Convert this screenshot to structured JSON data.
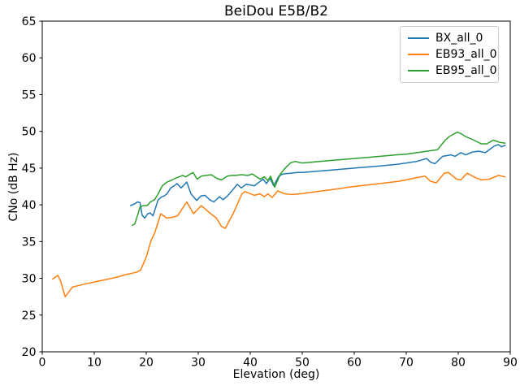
{
  "chart_data": {
    "type": "line",
    "title": "BeiDou E5B/B2",
    "xlabel": "Elevation (deg)",
    "ylabel": "CNo (dB Hz)",
    "xlim": [
      0,
      90
    ],
    "ylim": [
      20,
      65
    ],
    "xticks": [
      0,
      10,
      20,
      30,
      40,
      50,
      60,
      70,
      80,
      90
    ],
    "yticks": [
      20,
      25,
      30,
      35,
      40,
      45,
      50,
      55,
      60,
      65
    ],
    "grid": false,
    "legend_position": "upper right",
    "series": [
      {
        "name": "BX_all_0",
        "color": "#1f77b4",
        "points": [
          [
            17,
            39.9
          ],
          [
            17.7,
            40.1
          ],
          [
            18.3,
            40.4
          ],
          [
            18.8,
            40.3
          ],
          [
            19.2,
            38.6
          ],
          [
            19.7,
            38.2
          ],
          [
            20.3,
            38.8
          ],
          [
            20.8,
            38.9
          ],
          [
            21.3,
            38.5
          ],
          [
            21.8,
            39.6
          ],
          [
            22.3,
            40.7
          ],
          [
            23,
            41.1
          ],
          [
            23.4,
            41.2
          ],
          [
            24,
            41.5
          ],
          [
            24.7,
            42.3
          ],
          [
            25.4,
            42.6
          ],
          [
            25.9,
            42.9
          ],
          [
            26.7,
            42.3
          ],
          [
            27.8,
            43.1
          ],
          [
            28.6,
            41.5
          ],
          [
            29.7,
            40.6
          ],
          [
            30.5,
            41.2
          ],
          [
            31.3,
            41.3
          ],
          [
            32.2,
            40.7
          ],
          [
            33,
            40.4
          ],
          [
            34.1,
            41.1
          ],
          [
            34.8,
            40.7
          ],
          [
            35.6,
            41.2
          ],
          [
            36.7,
            42.1
          ],
          [
            37.5,
            42.8
          ],
          [
            38.3,
            42.3
          ],
          [
            39.2,
            42.8
          ],
          [
            40.8,
            42.6
          ],
          [
            41.9,
            43.2
          ],
          [
            42.5,
            43.5
          ],
          [
            43.1,
            42.9
          ],
          [
            43.8,
            43.6
          ],
          [
            44.5,
            42.6
          ],
          [
            45.5,
            43.9
          ],
          [
            46.3,
            44.2
          ],
          [
            47.7,
            44.3
          ],
          [
            49,
            44.4
          ],
          [
            50,
            44.4
          ],
          [
            55,
            44.7
          ],
          [
            60,
            45.0
          ],
          [
            65,
            45.3
          ],
          [
            68,
            45.5
          ],
          [
            70,
            45.7
          ],
          [
            72,
            45.9
          ],
          [
            73.9,
            46.3
          ],
          [
            74.7,
            45.8
          ],
          [
            75.5,
            45.6
          ],
          [
            77,
            46.6
          ],
          [
            78.6,
            46.8
          ],
          [
            79.4,
            46.6
          ],
          [
            80.5,
            47.1
          ],
          [
            81.4,
            46.8
          ],
          [
            82.8,
            47.2
          ],
          [
            84,
            47.3
          ],
          [
            85.2,
            47.1
          ],
          [
            86.9,
            48.0
          ],
          [
            87.7,
            48.2
          ],
          [
            88.3,
            47.9
          ],
          [
            89,
            48.1
          ]
        ]
      },
      {
        "name": "EB93_all_0",
        "color": "#ff7f0e",
        "points": [
          [
            2,
            29.9
          ],
          [
            3,
            30.4
          ],
          [
            3.5,
            29.7
          ],
          [
            4.4,
            27.5
          ],
          [
            5.8,
            28.8
          ],
          [
            8,
            29.2
          ],
          [
            10,
            29.5
          ],
          [
            12,
            29.8
          ],
          [
            14,
            30.1
          ],
          [
            16,
            30.5
          ],
          [
            18,
            30.8
          ],
          [
            18.9,
            31.1
          ],
          [
            20,
            32.9
          ],
          [
            21,
            35.3
          ],
          [
            21.6,
            36.1
          ],
          [
            22.8,
            38.8
          ],
          [
            23.9,
            38.2
          ],
          [
            25,
            38.3
          ],
          [
            26,
            38.5
          ],
          [
            27.8,
            40.4
          ],
          [
            29.1,
            38.8
          ],
          [
            30.6,
            39.9
          ],
          [
            32.2,
            38.9
          ],
          [
            33.5,
            38.2
          ],
          [
            34.4,
            37.1
          ],
          [
            35.2,
            36.8
          ],
          [
            36.7,
            38.8
          ],
          [
            38.4,
            41.5
          ],
          [
            39,
            41.8
          ],
          [
            40.8,
            41.3
          ],
          [
            41.9,
            41.5
          ],
          [
            42.7,
            41.1
          ],
          [
            43.4,
            41.5
          ],
          [
            44.2,
            41.0
          ],
          [
            45.3,
            41.9
          ],
          [
            46.6,
            41.5
          ],
          [
            48,
            41.4
          ],
          [
            49.7,
            41.5
          ],
          [
            55,
            42.0
          ],
          [
            60,
            42.5
          ],
          [
            65,
            42.9
          ],
          [
            68.4,
            43.2
          ],
          [
            70,
            43.4
          ],
          [
            72,
            43.7
          ],
          [
            73.6,
            43.9
          ],
          [
            74.7,
            43.2
          ],
          [
            75.8,
            43.0
          ],
          [
            77.3,
            44.3
          ],
          [
            78.1,
            44.4
          ],
          [
            79.7,
            43.5
          ],
          [
            80.5,
            43.4
          ],
          [
            81.7,
            44.3
          ],
          [
            83.3,
            43.7
          ],
          [
            84.5,
            43.4
          ],
          [
            86,
            43.5
          ],
          [
            87.7,
            44.0
          ],
          [
            89,
            43.8
          ]
        ]
      },
      {
        "name": "EB95_all_0",
        "color": "#2ca02c",
        "points": [
          [
            17.3,
            37.2
          ],
          [
            17.8,
            37.4
          ],
          [
            18.3,
            38.5
          ],
          [
            18.8,
            39.7
          ],
          [
            19.4,
            39.9
          ],
          [
            20.2,
            39.9
          ],
          [
            20.8,
            40.4
          ],
          [
            21.6,
            40.7
          ],
          [
            22.3,
            41.5
          ],
          [
            23.1,
            42.6
          ],
          [
            24,
            43.1
          ],
          [
            25,
            43.4
          ],
          [
            25.5,
            43.6
          ],
          [
            26.3,
            43.8
          ],
          [
            27,
            44.0
          ],
          [
            27.6,
            43.8
          ],
          [
            28.3,
            44.1
          ],
          [
            29,
            44.4
          ],
          [
            29.8,
            43.5
          ],
          [
            30.6,
            43.9
          ],
          [
            31.5,
            44.0
          ],
          [
            32.5,
            44.1
          ],
          [
            33.6,
            43.6
          ],
          [
            34.5,
            43.4
          ],
          [
            35.6,
            43.9
          ],
          [
            36.5,
            44.0
          ],
          [
            37.2,
            44.0
          ],
          [
            38.3,
            44.1
          ],
          [
            39.5,
            44.0
          ],
          [
            40.4,
            44.2
          ],
          [
            41.9,
            43.5
          ],
          [
            42.7,
            43.8
          ],
          [
            43.4,
            43.3
          ],
          [
            43.9,
            43.9
          ],
          [
            44.7,
            42.4
          ],
          [
            45.8,
            44.2
          ],
          [
            46.6,
            44.9
          ],
          [
            47.7,
            45.7
          ],
          [
            48.6,
            45.9
          ],
          [
            50,
            45.7
          ],
          [
            55,
            46.0
          ],
          [
            60,
            46.3
          ],
          [
            65,
            46.6
          ],
          [
            68,
            46.8
          ],
          [
            70,
            46.9
          ],
          [
            72,
            47.1
          ],
          [
            74,
            47.3
          ],
          [
            76,
            47.5
          ],
          [
            77.5,
            48.8
          ],
          [
            78.3,
            49.3
          ],
          [
            79.8,
            49.9
          ],
          [
            80.5,
            49.7
          ],
          [
            81.4,
            49.3
          ],
          [
            83,
            48.8
          ],
          [
            84.4,
            48.3
          ],
          [
            85.5,
            48.3
          ],
          [
            86.7,
            48.8
          ],
          [
            88,
            48.5
          ],
          [
            89,
            48.4
          ]
        ]
      }
    ]
  }
}
